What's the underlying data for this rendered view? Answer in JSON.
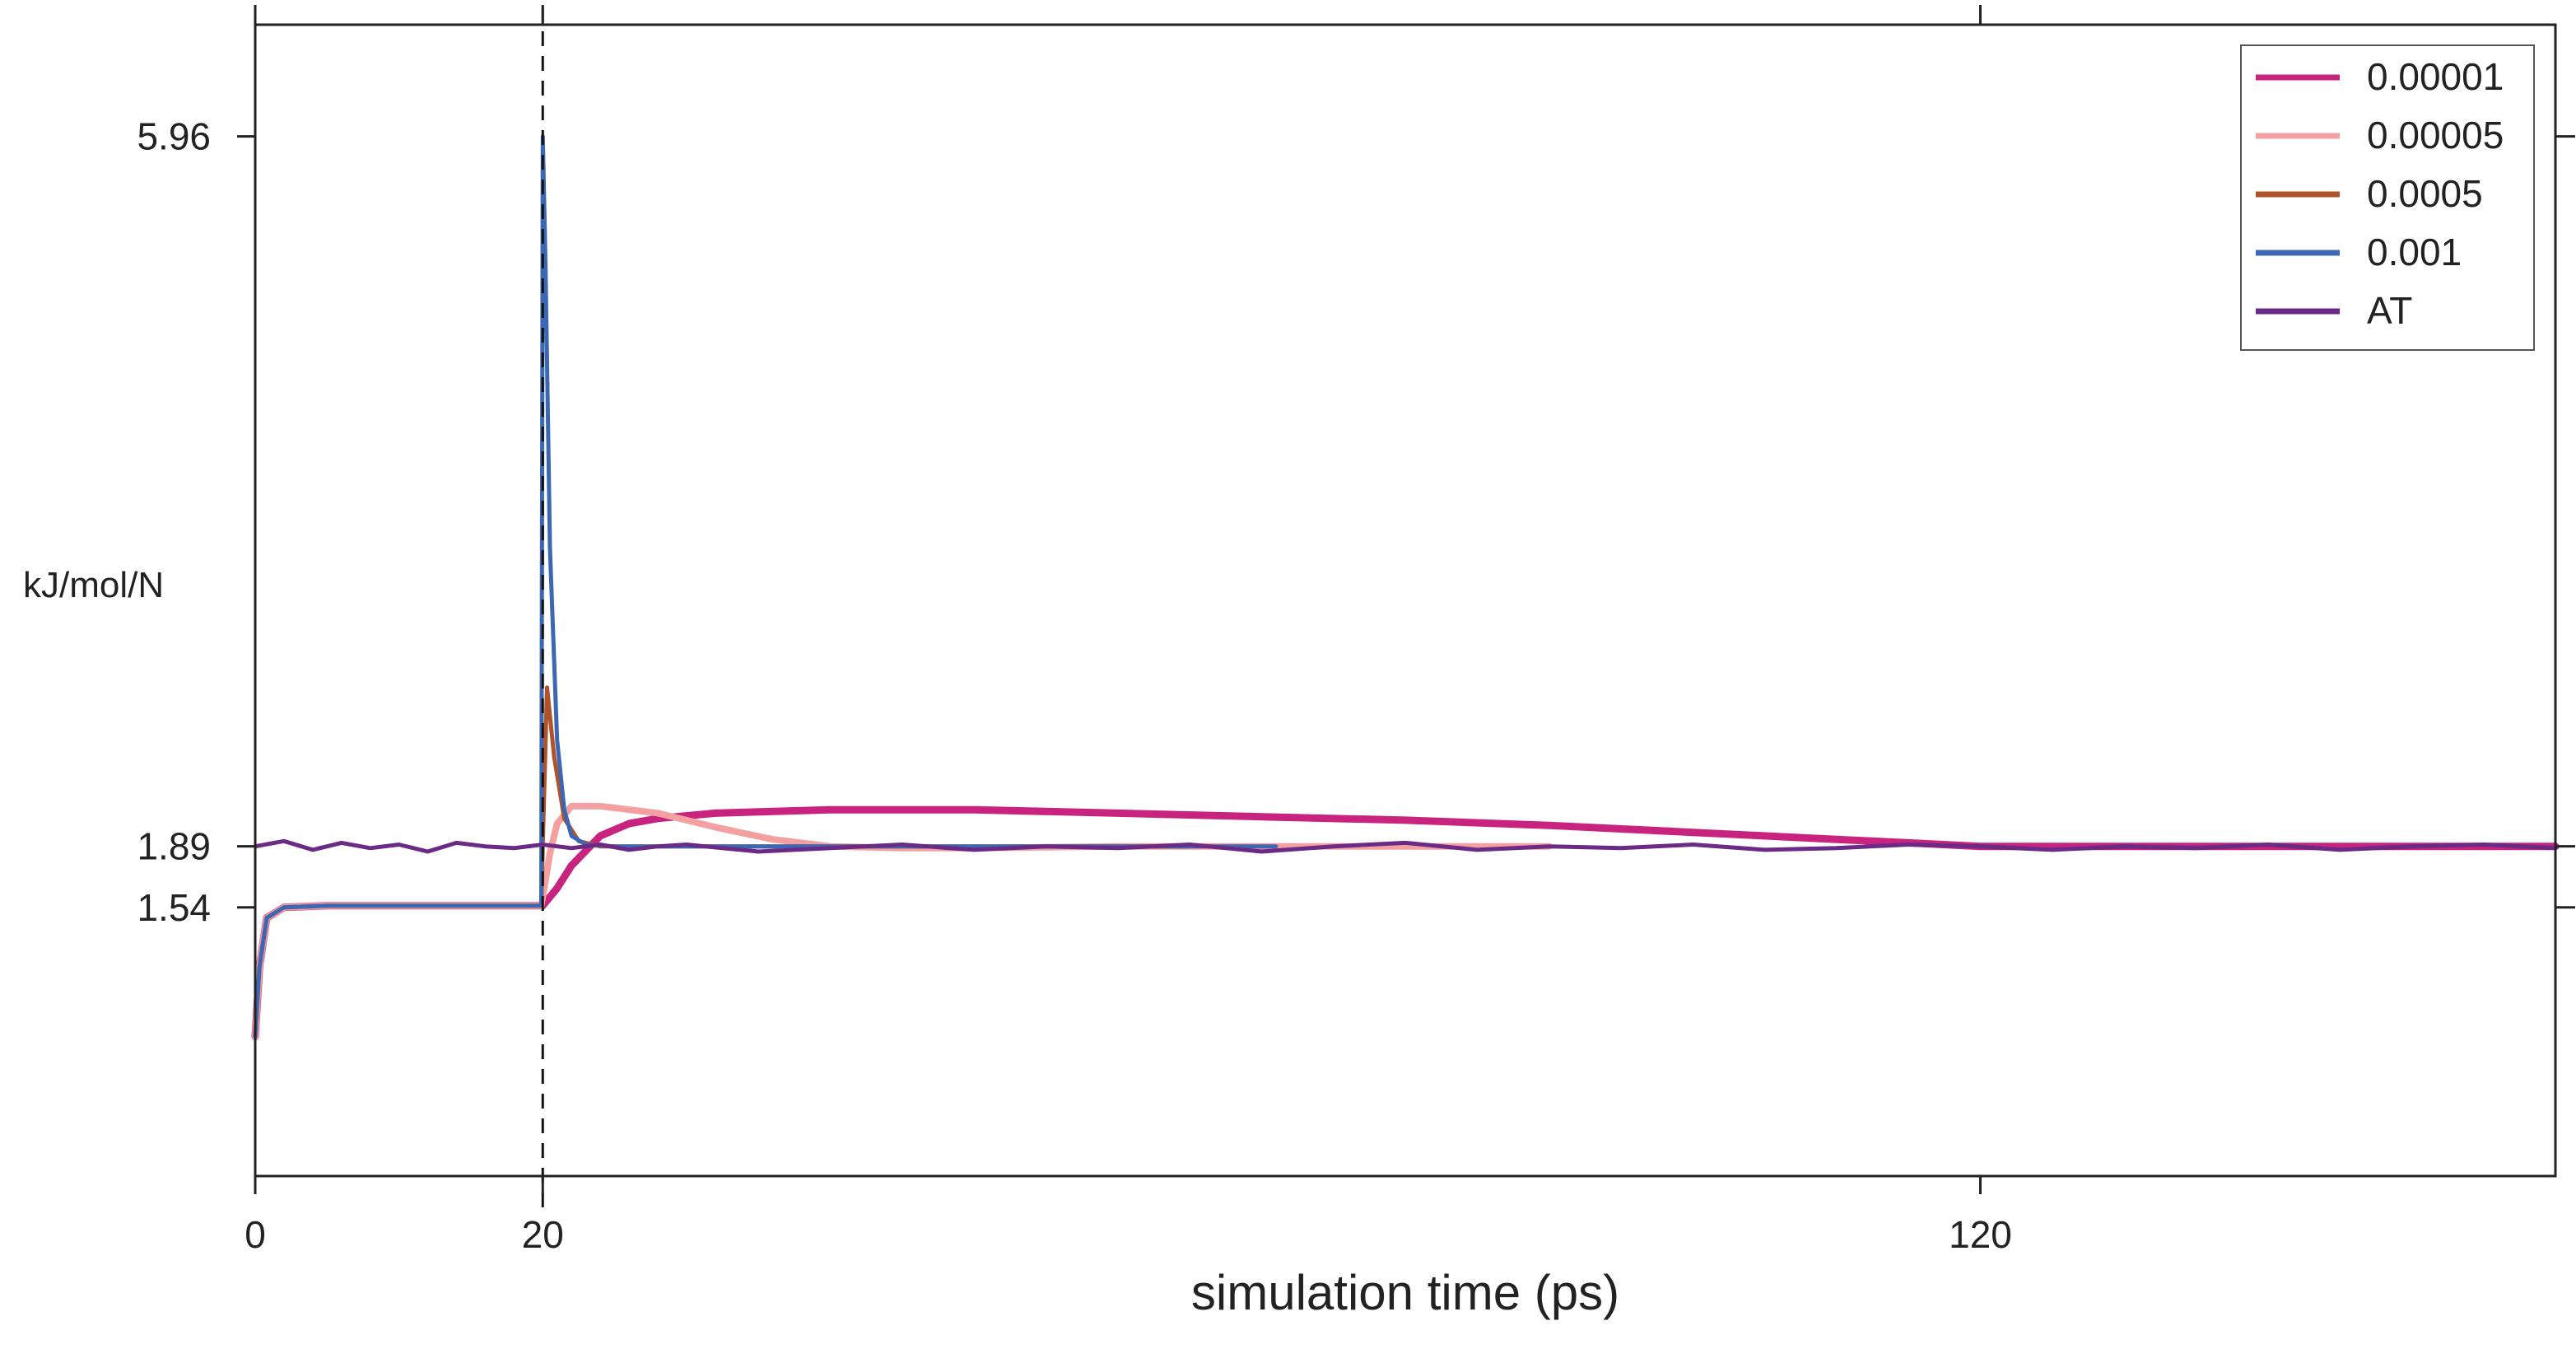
{
  "chart_data": {
    "type": "line",
    "xlabel": "simulation time (ps)",
    "ylabel": "kJ/mol/N",
    "xlim": [
      0,
      160
    ],
    "ylim": [
      0,
      6.6
    ],
    "x_ticks": [
      0,
      20,
      120
    ],
    "y_ticks": [
      1.54,
      1.89,
      5.96
    ],
    "x_tick_labels": [
      "0",
      "20",
      "120"
    ],
    "y_tick_labels": [
      "1.54",
      "1.89",
      "5.96"
    ],
    "vline_x": 20,
    "legend_position": "top-right",
    "grid": false,
    "series": [
      {
        "name": "0.00001",
        "color": "#c8237f",
        "x": [
          0,
          0.3,
          0.8,
          2,
          5,
          10,
          15,
          19.9,
          20,
          21,
          22,
          24,
          26,
          28,
          32,
          40,
          50,
          60,
          70,
          80,
          90,
          100,
          110,
          115,
          120,
          130,
          140,
          150,
          160
        ],
        "y": [
          0.8,
          1.2,
          1.48,
          1.54,
          1.55,
          1.55,
          1.55,
          1.55,
          1.55,
          1.65,
          1.78,
          1.95,
          2.02,
          2.05,
          2.08,
          2.1,
          2.1,
          2.08,
          2.06,
          2.04,
          2.01,
          1.97,
          1.93,
          1.91,
          1.89,
          1.89,
          1.89,
          1.89,
          1.89
        ]
      },
      {
        "name": "0.00005",
        "color": "#f4a0a0",
        "x": [
          0,
          0.3,
          0.8,
          2,
          5,
          10,
          15,
          19.9,
          20,
          20.5,
          21,
          22,
          24,
          28,
          32,
          36,
          40,
          45,
          50,
          60,
          70,
          80,
          90
        ],
        "y": [
          0.8,
          1.2,
          1.48,
          1.54,
          1.55,
          1.55,
          1.55,
          1.55,
          1.6,
          1.85,
          2.02,
          2.12,
          2.12,
          2.08,
          2.0,
          1.93,
          1.89,
          1.88,
          1.88,
          1.89,
          1.89,
          1.89,
          1.89
        ]
      },
      {
        "name": "0.0005",
        "color": "#b0522a",
        "x": [
          0,
          0.3,
          0.8,
          2,
          5,
          10,
          15,
          19.9,
          20,
          20.3,
          20.8,
          21.5,
          22.5,
          24,
          30,
          40,
          50,
          60,
          65
        ],
        "y": [
          0.8,
          1.2,
          1.48,
          1.54,
          1.55,
          1.55,
          1.55,
          1.55,
          1.9,
          2.8,
          2.4,
          2.05,
          1.92,
          1.89,
          1.89,
          1.89,
          1.89,
          1.89,
          1.89
        ]
      },
      {
        "name": "0.001",
        "color": "#3b67b3",
        "x": [
          0,
          0.3,
          0.8,
          2,
          5,
          10,
          15,
          19.9,
          20,
          20.2,
          20.5,
          21,
          21.5,
          22,
          23,
          25,
          30,
          40,
          50,
          60,
          71
        ],
        "y": [
          0.8,
          1.2,
          1.48,
          1.54,
          1.55,
          1.55,
          1.55,
          1.55,
          5.96,
          5.2,
          3.6,
          2.5,
          2.1,
          1.95,
          1.9,
          1.89,
          1.89,
          1.89,
          1.89,
          1.89,
          1.89
        ]
      },
      {
        "name": "AT",
        "color": "#6a2a86",
        "x": [
          0,
          2,
          4,
          6,
          8,
          10,
          12,
          14,
          16,
          18,
          20,
          22,
          24,
          26,
          28,
          30,
          35,
          40,
          45,
          50,
          55,
          60,
          65,
          70,
          75,
          80,
          85,
          90,
          95,
          100,
          105,
          110,
          115,
          120,
          125,
          130,
          135,
          140,
          145,
          150,
          155,
          160
        ],
        "y": [
          1.89,
          1.92,
          1.87,
          1.91,
          1.88,
          1.9,
          1.86,
          1.91,
          1.89,
          1.88,
          1.9,
          1.88,
          1.9,
          1.87,
          1.89,
          1.9,
          1.86,
          1.88,
          1.9,
          1.87,
          1.89,
          1.88,
          1.9,
          1.86,
          1.89,
          1.91,
          1.87,
          1.89,
          1.88,
          1.9,
          1.87,
          1.88,
          1.9,
          1.89,
          1.87,
          1.89,
          1.88,
          1.9,
          1.87,
          1.89,
          1.9,
          1.88
        ]
      }
    ]
  }
}
